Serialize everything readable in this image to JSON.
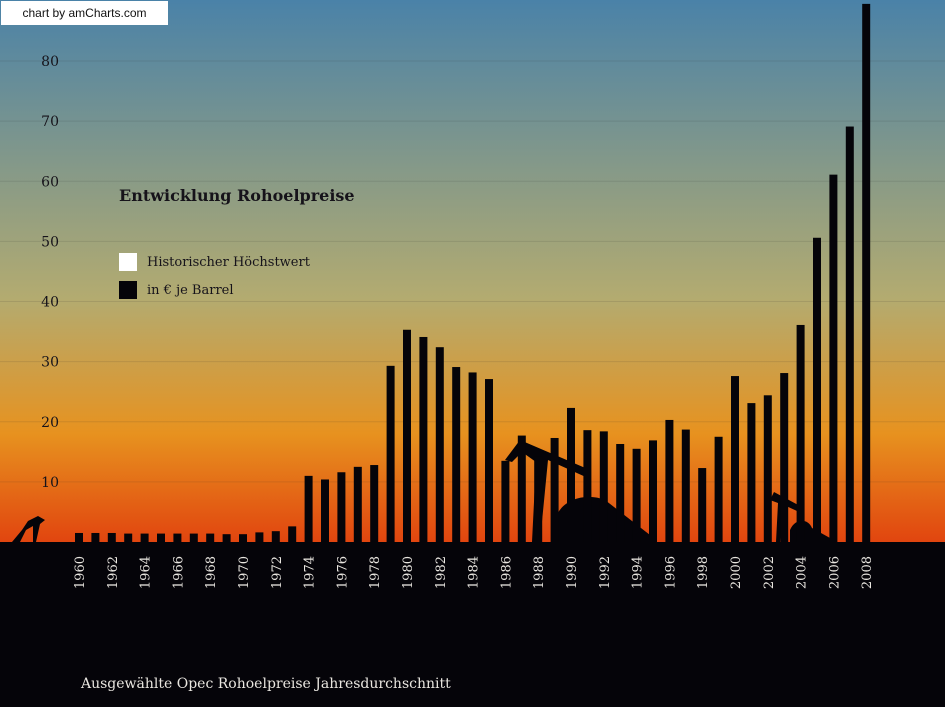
{
  "credit": "chart by amCharts.com",
  "chart_data": {
    "type": "bar",
    "title": "Entwicklung Rohoelpreise",
    "footer": "Ausgewählte Opec Rohoelpreise Jahresdurchschnitt",
    "legend_position": "top-left",
    "legend": [
      {
        "label": "Historischer Höchstwert",
        "color": "#ffffff"
      },
      {
        "label": "in € je Barrel",
        "color": "#050409"
      }
    ],
    "x": [
      1960,
      1961,
      1962,
      1963,
      1964,
      1965,
      1966,
      1967,
      1968,
      1969,
      1970,
      1971,
      1972,
      1973,
      1974,
      1975,
      1976,
      1977,
      1978,
      1979,
      1980,
      1981,
      1982,
      1983,
      1984,
      1985,
      1986,
      1987,
      1988,
      1989,
      1990,
      1991,
      1992,
      1993,
      1994,
      1995,
      1996,
      1997,
      1998,
      1999,
      2000,
      2001,
      2002,
      2003,
      2004,
      2005,
      2006,
      2007,
      2008
    ],
    "x_tick_labels": [
      "1960",
      "1962",
      "1964",
      "1966",
      "1968",
      "1970",
      "1972",
      "1974",
      "1976",
      "1978",
      "1980",
      "1982",
      "1984",
      "1986",
      "1988",
      "1990",
      "1992",
      "1994",
      "1996",
      "1998",
      "2000",
      "2002",
      "2004",
      "2006",
      "2008"
    ],
    "values": [
      1.5,
      1.5,
      1.5,
      1.4,
      1.4,
      1.4,
      1.4,
      1.4,
      1.4,
      1.3,
      1.3,
      1.6,
      1.8,
      2.6,
      11,
      10.4,
      11.6,
      12.5,
      12.8,
      29.3,
      35.3,
      34.1,
      32.4,
      29.1,
      28.2,
      27.1,
      13.5,
      17.7,
      14.2,
      17.3,
      22.3,
      18.6,
      18.4,
      16.3,
      15.5,
      16.9,
      20.3,
      18.7,
      12.3,
      17.5,
      27.6,
      23.1,
      24.4,
      28.1,
      36.1,
      50.6,
      61.1,
      69.1,
      89.5
    ],
    "y_ticks": [
      10,
      20,
      30,
      40,
      50,
      60,
      70,
      80
    ],
    "ylim": [
      0,
      90
    ]
  },
  "colors": {
    "bar": "#050409",
    "sky_top": "#4a82a8",
    "sky_mid": "#b3ab70",
    "sky_low": "#e7921f",
    "horizon": "#e1450f",
    "ground": "#050409"
  }
}
